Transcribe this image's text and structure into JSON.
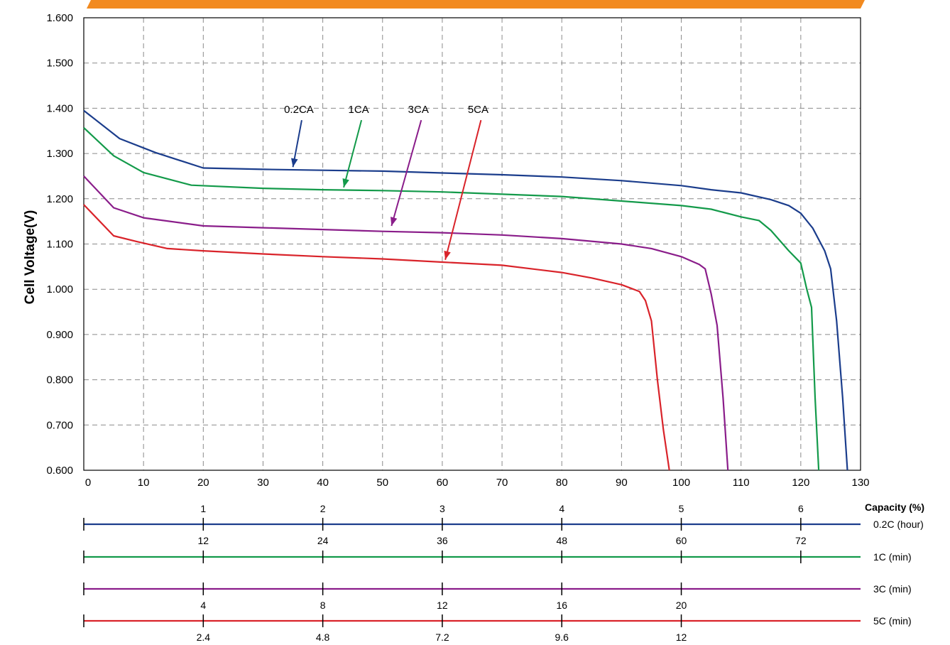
{
  "chart_data": {
    "type": "line",
    "title": "",
    "ylabel": "Cell Voltage(V)",
    "xlabel": "",
    "xlim": [
      0,
      130
    ],
    "ylim": [
      0.6,
      1.6
    ],
    "x_ticks": [
      0,
      10,
      20,
      30,
      40,
      50,
      60,
      70,
      80,
      90,
      100,
      110,
      120,
      130
    ],
    "y_ticks": [
      "0.600",
      "0.700",
      "0.800",
      "0.900",
      "1.000",
      "1.100",
      "1.200",
      "1.300",
      "1.400",
      "1.500",
      "1.600"
    ],
    "grid": true,
    "series": [
      {
        "name": "0.2CA",
        "color": "#1b3d8c",
        "points": [
          [
            0,
            1.395
          ],
          [
            6,
            1.333
          ],
          [
            12,
            1.302
          ],
          [
            20,
            1.268
          ],
          [
            30,
            1.265
          ],
          [
            40,
            1.263
          ],
          [
            50,
            1.261
          ],
          [
            60,
            1.257
          ],
          [
            70,
            1.253
          ],
          [
            80,
            1.248
          ],
          [
            90,
            1.24
          ],
          [
            100,
            1.229
          ],
          [
            105,
            1.22
          ],
          [
            110,
            1.213
          ],
          [
            115,
            1.198
          ],
          [
            118,
            1.185
          ],
          [
            120,
            1.168
          ],
          [
            122,
            1.135
          ],
          [
            124,
            1.085
          ],
          [
            125,
            1.045
          ],
          [
            126,
            0.93
          ],
          [
            127,
            0.76
          ],
          [
            127.8,
            0.6
          ]
        ]
      },
      {
        "name": "1CA",
        "color": "#139a4a",
        "points": [
          [
            0,
            1.357
          ],
          [
            5,
            1.295
          ],
          [
            10,
            1.258
          ],
          [
            18,
            1.23
          ],
          [
            30,
            1.223
          ],
          [
            40,
            1.22
          ],
          [
            50,
            1.218
          ],
          [
            60,
            1.215
          ],
          [
            70,
            1.21
          ],
          [
            80,
            1.205
          ],
          [
            90,
            1.195
          ],
          [
            100,
            1.185
          ],
          [
            105,
            1.177
          ],
          [
            110,
            1.16
          ],
          [
            113,
            1.152
          ],
          [
            115,
            1.13
          ],
          [
            118,
            1.085
          ],
          [
            120,
            1.058
          ],
          [
            121,
            1.0
          ],
          [
            121.8,
            0.96
          ],
          [
            122.4,
            0.76
          ],
          [
            123,
            0.6
          ]
        ]
      },
      {
        "name": "3CA",
        "color": "#8a1d8a",
        "points": [
          [
            0,
            1.25
          ],
          [
            5,
            1.18
          ],
          [
            10,
            1.158
          ],
          [
            20,
            1.14
          ],
          [
            30,
            1.136
          ],
          [
            40,
            1.132
          ],
          [
            50,
            1.128
          ],
          [
            60,
            1.125
          ],
          [
            70,
            1.12
          ],
          [
            80,
            1.112
          ],
          [
            90,
            1.1
          ],
          [
            95,
            1.09
          ],
          [
            100,
            1.072
          ],
          [
            103,
            1.055
          ],
          [
            104,
            1.045
          ],
          [
            105,
            0.99
          ],
          [
            106,
            0.92
          ],
          [
            107,
            0.76
          ],
          [
            107.8,
            0.6
          ]
        ]
      },
      {
        "name": "5CA",
        "color": "#d9232a",
        "points": [
          [
            0,
            1.187
          ],
          [
            5,
            1.118
          ],
          [
            9,
            1.105
          ],
          [
            14,
            1.09
          ],
          [
            20,
            1.085
          ],
          [
            30,
            1.078
          ],
          [
            40,
            1.072
          ],
          [
            50,
            1.067
          ],
          [
            60,
            1.06
          ],
          [
            70,
            1.053
          ],
          [
            80,
            1.037
          ],
          [
            85,
            1.025
          ],
          [
            90,
            1.01
          ],
          [
            93,
            0.995
          ],
          [
            94,
            0.975
          ],
          [
            95,
            0.93
          ],
          [
            96,
            0.8
          ],
          [
            97,
            0.69
          ],
          [
            98,
            0.6
          ]
        ]
      }
    ],
    "series_label_positions": [
      {
        "name": "0.2CA",
        "text_x": 36,
        "text_y": 1.38,
        "arrow_to_x": 35,
        "arrow_to_y": 1.27
      },
      {
        "name": "1CA",
        "text_x": 46,
        "text_y": 1.38,
        "arrow_to_x": 43.5,
        "arrow_to_y": 1.225
      },
      {
        "name": "3CA",
        "text_x": 56,
        "text_y": 1.38,
        "arrow_to_x": 51.5,
        "arrow_to_y": 1.14
      },
      {
        "name": "5CA",
        "text_x": 66,
        "text_y": 1.38,
        "arrow_to_x": 60.5,
        "arrow_to_y": 1.065
      }
    ],
    "secondary_axes": [
      {
        "name": "0.2C (hour)",
        "color": "#1b3d8c",
        "labels_above": [
          [
            "1",
            20
          ],
          [
            "2",
            40
          ],
          [
            "3",
            60
          ],
          [
            "4",
            80
          ],
          [
            "5",
            100
          ],
          [
            "6",
            120
          ]
        ],
        "labels_below": [
          [
            "12",
            20
          ],
          [
            "24",
            40
          ],
          [
            "36",
            60
          ],
          [
            "48",
            80
          ],
          [
            "60",
            100
          ],
          [
            "72",
            120
          ]
        ]
      },
      {
        "name": "1C (min)",
        "color": "#139a4a",
        "labels_above": [],
        "labels_below": []
      },
      {
        "name": "3C (min)",
        "color": "#8a1d8a",
        "labels_above": [],
        "labels_below": [
          [
            "4",
            20
          ],
          [
            "8",
            40
          ],
          [
            "12",
            60
          ],
          [
            "16",
            80
          ],
          [
            "20",
            100
          ]
        ]
      },
      {
        "name": "5C (min)",
        "color": "#d9232a",
        "labels_above": [],
        "labels_below": [
          [
            "2.4",
            20
          ],
          [
            "4.8",
            40
          ],
          [
            "7.2",
            60
          ],
          [
            "9.6",
            80
          ],
          [
            "12",
            100
          ]
        ]
      }
    ],
    "secondary_header": "Capacity (%)"
  }
}
